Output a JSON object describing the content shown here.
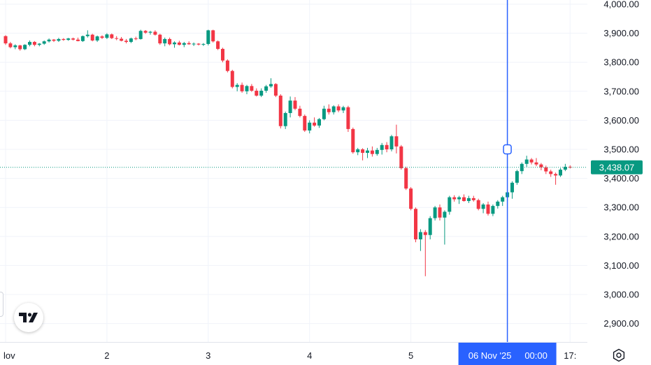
{
  "chart_data": {
    "type": "candlestick",
    "title": "",
    "xlabel": "",
    "ylabel": "",
    "ylim": [
      2850,
      4020
    ],
    "y_ticks": [
      "4,000.00",
      "3,900.00",
      "3,800.00",
      "3,700.00",
      "3,600.00",
      "3,500.00",
      "3,400.00",
      "3,300.00",
      "3,200.00",
      "3,100.00",
      "3,000.00",
      "2,900.00"
    ],
    "y_tick_values": [
      4000,
      3900,
      3800,
      3700,
      3600,
      3500,
      3400,
      3300,
      3200,
      3100,
      3000,
      2900
    ],
    "x_ticks": [
      "lov",
      "2",
      "3",
      "4",
      "5",
      "17:"
    ],
    "x_tick_index": [
      0,
      21,
      42,
      63,
      84,
      117
    ],
    "last_price": 3438.07,
    "last_price_label": "3,438.07",
    "crosshair_label_date": "06 Nov '25",
    "crosshair_label_time": "00:00",
    "crosshair_index": 104,
    "crosshair_price": 3500,
    "colors": {
      "up": "#089981",
      "down": "#f23645",
      "crosshair": "#2962ff",
      "last_price": "#089981"
    },
    "ohlc": [
      [
        3890,
        3893,
        3860,
        3865
      ],
      [
        3865,
        3870,
        3848,
        3852
      ],
      [
        3852,
        3862,
        3845,
        3858
      ],
      [
        3858,
        3860,
        3840,
        3845
      ],
      [
        3845,
        3862,
        3842,
        3860
      ],
      [
        3860,
        3875,
        3855,
        3870
      ],
      [
        3870,
        3873,
        3855,
        3860
      ],
      [
        3860,
        3866,
        3855,
        3864
      ],
      [
        3864,
        3875,
        3860,
        3872
      ],
      [
        3872,
        3882,
        3868,
        3878
      ],
      [
        3878,
        3880,
        3870,
        3874
      ],
      [
        3874,
        3884,
        3870,
        3880
      ],
      [
        3880,
        3883,
        3874,
        3877
      ],
      [
        3877,
        3884,
        3874,
        3882
      ],
      [
        3882,
        3885,
        3875,
        3878
      ],
      [
        3878,
        3885,
        3872,
        3873
      ],
      [
        3873,
        3892,
        3870,
        3890
      ],
      [
        3890,
        3910,
        3885,
        3895
      ],
      [
        3895,
        3898,
        3872,
        3875
      ],
      [
        3875,
        3892,
        3870,
        3889
      ],
      [
        3889,
        3893,
        3880,
        3884
      ],
      [
        3884,
        3900,
        3880,
        3896
      ],
      [
        3896,
        3899,
        3880,
        3883
      ],
      [
        3883,
        3890,
        3876,
        3881
      ],
      [
        3881,
        3887,
        3872,
        3874
      ],
      [
        3874,
        3880,
        3865,
        3870
      ],
      [
        3870,
        3885,
        3866,
        3882
      ],
      [
        3882,
        3888,
        3876,
        3880
      ],
      [
        3880,
        3912,
        3878,
        3908
      ],
      [
        3908,
        3911,
        3898,
        3902
      ],
      [
        3902,
        3908,
        3895,
        3905
      ],
      [
        3905,
        3910,
        3892,
        3895
      ],
      [
        3895,
        3898,
        3860,
        3865
      ],
      [
        3865,
        3885,
        3855,
        3880
      ],
      [
        3880,
        3885,
        3858,
        3862
      ],
      [
        3862,
        3872,
        3850,
        3868
      ],
      [
        3868,
        3874,
        3858,
        3860
      ],
      [
        3860,
        3870,
        3852,
        3866
      ],
      [
        3866,
        3872,
        3860,
        3862
      ],
      [
        3862,
        3868,
        3856,
        3864
      ],
      [
        3864,
        3866,
        3858,
        3861
      ],
      [
        3861,
        3866,
        3856,
        3863
      ],
      [
        3863,
        3912,
        3858,
        3910
      ],
      [
        3910,
        3912,
        3868,
        3872
      ],
      [
        3872,
        3875,
        3842,
        3846
      ],
      [
        3846,
        3850,
        3800,
        3806
      ],
      [
        3806,
        3810,
        3765,
        3770
      ],
      [
        3770,
        3774,
        3710,
        3715
      ],
      [
        3715,
        3728,
        3700,
        3722
      ],
      [
        3722,
        3730,
        3695,
        3700
      ],
      [
        3700,
        3722,
        3690,
        3718
      ],
      [
        3718,
        3725,
        3698,
        3702
      ],
      [
        3702,
        3710,
        3682,
        3685
      ],
      [
        3685,
        3710,
        3680,
        3702
      ],
      [
        3702,
        3722,
        3695,
        3717
      ],
      [
        3717,
        3745,
        3712,
        3725
      ],
      [
        3725,
        3728,
        3680,
        3685
      ],
      [
        3685,
        3690,
        3572,
        3580
      ],
      [
        3580,
        3630,
        3570,
        3625
      ],
      [
        3625,
        3682,
        3610,
        3668
      ],
      [
        3668,
        3680,
        3635,
        3640
      ],
      [
        3640,
        3650,
        3610,
        3615
      ],
      [
        3615,
        3620,
        3560,
        3565
      ],
      [
        3565,
        3600,
        3555,
        3592
      ],
      [
        3592,
        3610,
        3578,
        3582
      ],
      [
        3582,
        3608,
        3574,
        3604
      ],
      [
        3604,
        3650,
        3600,
        3640
      ],
      [
        3640,
        3655,
        3620,
        3628
      ],
      [
        3628,
        3652,
        3620,
        3648
      ],
      [
        3648,
        3655,
        3628,
        3634
      ],
      [
        3634,
        3650,
        3625,
        3645
      ],
      [
        3645,
        3650,
        3560,
        3570
      ],
      [
        3570,
        3575,
        3485,
        3490
      ],
      [
        3490,
        3505,
        3480,
        3500
      ],
      [
        3500,
        3504,
        3462,
        3488
      ],
      [
        3488,
        3505,
        3470,
        3496
      ],
      [
        3496,
        3510,
        3475,
        3484
      ],
      [
        3484,
        3505,
        3478,
        3498
      ],
      [
        3498,
        3522,
        3482,
        3515
      ],
      [
        3515,
        3525,
        3490,
        3500
      ],
      [
        3500,
        3550,
        3493,
        3545
      ],
      [
        3545,
        3585,
        3486,
        3510
      ],
      [
        3510,
        3515,
        3430,
        3435
      ],
      [
        3435,
        3440,
        3360,
        3365
      ],
      [
        3365,
        3370,
        3290,
        3295
      ],
      [
        3295,
        3300,
        3180,
        3190
      ],
      [
        3190,
        3225,
        3150,
        3215
      ],
      [
        3215,
        3222,
        3063,
        3205
      ],
      [
        3205,
        3270,
        3190,
        3263
      ],
      [
        3263,
        3305,
        3255,
        3300
      ],
      [
        3300,
        3310,
        3255,
        3265
      ],
      [
        3265,
        3290,
        3172,
        3285
      ],
      [
        3285,
        3340,
        3275,
        3335
      ],
      [
        3335,
        3342,
        3320,
        3328
      ],
      [
        3328,
        3340,
        3312,
        3335
      ],
      [
        3335,
        3345,
        3320,
        3322
      ],
      [
        3322,
        3340,
        3315,
        3332
      ],
      [
        3332,
        3340,
        3320,
        3325
      ],
      [
        3325,
        3330,
        3290,
        3295
      ],
      [
        3295,
        3315,
        3280,
        3310
      ],
      [
        3310,
        3320,
        3272,
        3278
      ],
      [
        3278,
        3310,
        3270,
        3305
      ],
      [
        3305,
        3325,
        3296,
        3320
      ],
      [
        3320,
        3340,
        3305,
        3335
      ],
      [
        3335,
        3360,
        3322,
        3352
      ],
      [
        3352,
        3390,
        3330,
        3385
      ],
      [
        3385,
        3430,
        3378,
        3425
      ],
      [
        3425,
        3455,
        3415,
        3450
      ],
      [
        3450,
        3478,
        3440,
        3465
      ],
      [
        3465,
        3470,
        3448,
        3455
      ],
      [
        3455,
        3470,
        3442,
        3448
      ],
      [
        3448,
        3453,
        3428,
        3438
      ],
      [
        3438,
        3444,
        3415,
        3424
      ],
      [
        3424,
        3430,
        3405,
        3415
      ],
      [
        3415,
        3420,
        3378,
        3410
      ],
      [
        3410,
        3435,
        3405,
        3430
      ],
      [
        3430,
        3450,
        3425,
        3440
      ],
      [
        3440,
        3445,
        3434,
        3438
      ]
    ]
  }
}
